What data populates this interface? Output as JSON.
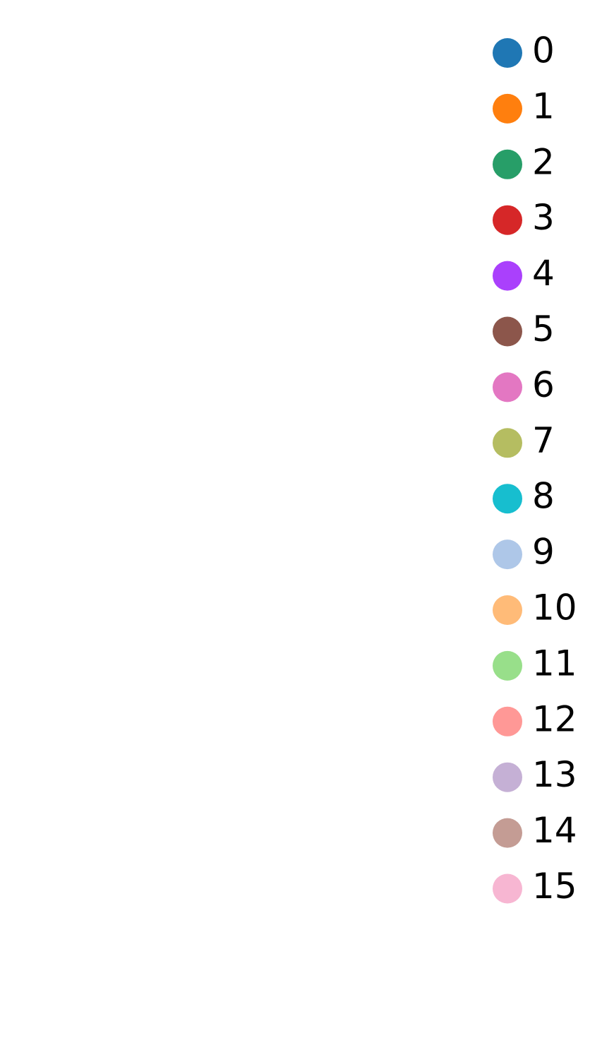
{
  "chart_data": {
    "type": "scatter",
    "title": "",
    "xlabel": "",
    "ylabel": "",
    "grid": false,
    "legend_position": "right",
    "series": [
      {
        "name": "0",
        "color": "#1f77b4",
        "values": []
      },
      {
        "name": "1",
        "color": "#ff7f0e",
        "values": []
      },
      {
        "name": "2",
        "color": "#279e68",
        "values": []
      },
      {
        "name": "3",
        "color": "#d62728",
        "values": []
      },
      {
        "name": "4",
        "color": "#aa40fc",
        "values": []
      },
      {
        "name": "5",
        "color": "#8c564b",
        "values": []
      },
      {
        "name": "6",
        "color": "#e377c2",
        "values": []
      },
      {
        "name": "7",
        "color": "#b5bd61",
        "values": []
      },
      {
        "name": "8",
        "color": "#17becf",
        "values": []
      },
      {
        "name": "9",
        "color": "#aec7e8",
        "values": []
      },
      {
        "name": "10",
        "color": "#ffbb78",
        "values": []
      },
      {
        "name": "11",
        "color": "#98df8a",
        "values": []
      },
      {
        "name": "12",
        "color": "#ff9896",
        "values": []
      },
      {
        "name": "13",
        "color": "#c5b0d5",
        "values": []
      },
      {
        "name": "14",
        "color": "#c49c94",
        "values": []
      },
      {
        "name": "15",
        "color": "#f7b6d2",
        "values": []
      }
    ]
  }
}
